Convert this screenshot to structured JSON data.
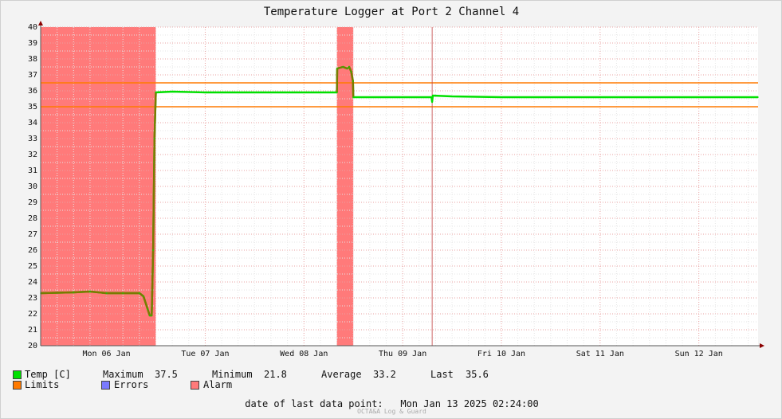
{
  "chart_data": {
    "type": "line",
    "title": "Temperature Logger at Port 2 Channel 4",
    "xlabel": "",
    "ylabel": "",
    "ylim": [
      20,
      40
    ],
    "yticks": [
      20,
      21,
      22,
      23,
      24,
      25,
      26,
      27,
      28,
      29,
      30,
      31,
      32,
      33,
      34,
      35,
      36,
      37,
      38,
      39,
      40
    ],
    "x_range_days": [
      "Mon 06 Jan",
      "Sun 12 Jan"
    ],
    "x_tick_labels": [
      "Mon 06 Jan",
      "Tue 07 Jan",
      "Wed 08 Jan",
      "Thu 09 Jan",
      "Fri 10 Jan",
      "Sat 11 Jan",
      "Sun 12 Jan"
    ],
    "limits": [
      35.0,
      36.5
    ],
    "alarm_periods": [
      {
        "start": "2025-01-05 20:00",
        "end": "2025-01-07 00:00"
      },
      {
        "start": "2025-01-08 20:00",
        "end": "2025-01-09 00:00"
      }
    ],
    "series": [
      {
        "name": "Temp [C]",
        "color": "#00e000",
        "points": [
          [
            "2025-01-05 20:00",
            23.3
          ],
          [
            "2025-01-06 04:00",
            23.35
          ],
          [
            "2025-01-06 08:00",
            23.4
          ],
          [
            "2025-01-06 12:00",
            23.3
          ],
          [
            "2025-01-06 16:00",
            23.3
          ],
          [
            "2025-01-06 20:00",
            23.3
          ],
          [
            "2025-01-06 21:00",
            23.1
          ],
          [
            "2025-01-06 22:00",
            22.3
          ],
          [
            "2025-01-06 22:30",
            21.9
          ],
          [
            "2025-01-06 23:00",
            21.9
          ],
          [
            "2025-01-06 23:20",
            26.0
          ],
          [
            "2025-01-06 23:40",
            33.0
          ],
          [
            "2025-01-07 00:00",
            35.9
          ],
          [
            "2025-01-07 04:00",
            35.95
          ],
          [
            "2025-01-07 12:00",
            35.9
          ],
          [
            "2025-01-08 00:00",
            35.9
          ],
          [
            "2025-01-08 12:00",
            35.9
          ],
          [
            "2025-01-08 20:00",
            35.9
          ],
          [
            "2025-01-08 20:05",
            37.4
          ],
          [
            "2025-01-08 21:30",
            37.5
          ],
          [
            "2025-01-08 22:30",
            37.4
          ],
          [
            "2025-01-08 23:00",
            37.5
          ],
          [
            "2025-01-08 23:30",
            37.2
          ],
          [
            "2025-01-08 23:55",
            36.6
          ],
          [
            "2025-01-09 00:00",
            35.6
          ],
          [
            "2025-01-09 12:00",
            35.6
          ],
          [
            "2025-01-09 19:00",
            35.6
          ],
          [
            "2025-01-09 19:10",
            35.3
          ],
          [
            "2025-01-09 19:20",
            35.7
          ],
          [
            "2025-01-10 00:00",
            35.65
          ],
          [
            "2025-01-10 12:00",
            35.6
          ],
          [
            "2025-01-11 00:00",
            35.6
          ],
          [
            "2025-01-11 12:00",
            35.6
          ],
          [
            "2025-01-12 00:00",
            35.6
          ],
          [
            "2025-01-12 12:00",
            35.6
          ],
          [
            "2025-01-13 02:24",
            35.6
          ]
        ]
      }
    ],
    "event_marker": "2025-01-09 19:10",
    "colors": {
      "alarm": "#ff7a7a",
      "limits": "#ff7a00",
      "temp": "#00e000",
      "temp_outline": "#7a7a00",
      "errors": "#7a7aff"
    }
  },
  "legend": {
    "temp_label": "Temp [C]",
    "maximum_label": "Maximum",
    "maximum_value": "37.5",
    "minimum_label": "Minimum",
    "minimum_value": "21.8",
    "average_label": "Average",
    "average_value": "33.2",
    "last_label": "Last",
    "last_value": "35.6",
    "limits_label": "Limits",
    "errors_label": "Errors",
    "alarm_label": "Alarm"
  },
  "footer": {
    "last_point_label": "date of last data point:",
    "last_point_value": "Mon Jan 13 2025 02:24:00",
    "watermark": "OCTA&A Log & Guard"
  }
}
